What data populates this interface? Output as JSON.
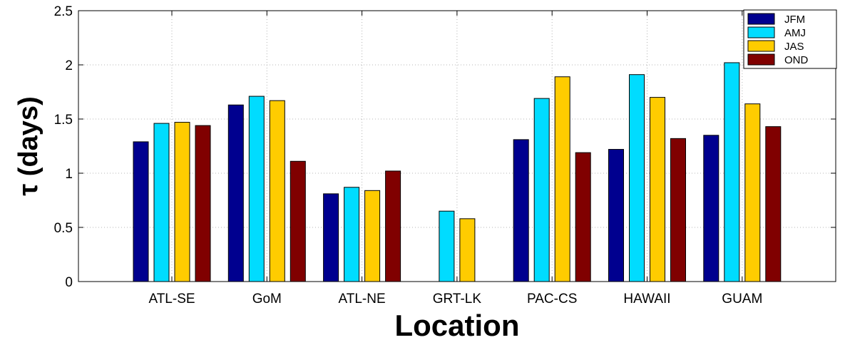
{
  "chart_data": {
    "type": "bar",
    "title": "",
    "xlabel": "Location",
    "ylabel": "τ (days)",
    "ylim": [
      0,
      2.5
    ],
    "yticks": [
      0,
      0.5,
      1,
      1.5,
      2,
      2.5
    ],
    "ytick_labels": [
      "0",
      "0.5",
      "1",
      "1.5",
      "2",
      "2.5"
    ],
    "grid": true,
    "legend_position": "top-right",
    "categories": [
      "ATL-SE",
      "GoM",
      "ATL-NE",
      "GRT-LK",
      "PAC-CS",
      "HAWAII",
      "GUAM"
    ],
    "series": [
      {
        "name": "JFM",
        "color": "#00008f",
        "values": [
          1.29,
          1.63,
          0.81,
          null,
          1.31,
          1.22,
          1.35
        ]
      },
      {
        "name": "AMJ",
        "color": "#00dcff",
        "values": [
          1.46,
          1.71,
          0.87,
          0.65,
          1.69,
          1.91,
          2.02
        ]
      },
      {
        "name": "JAS",
        "color": "#ffcc00",
        "values": [
          1.47,
          1.67,
          0.84,
          0.58,
          1.89,
          1.7,
          1.64
        ]
      },
      {
        "name": "OND",
        "color": "#800000",
        "values": [
          1.44,
          1.11,
          1.02,
          null,
          1.19,
          1.32,
          1.43
        ]
      }
    ]
  }
}
